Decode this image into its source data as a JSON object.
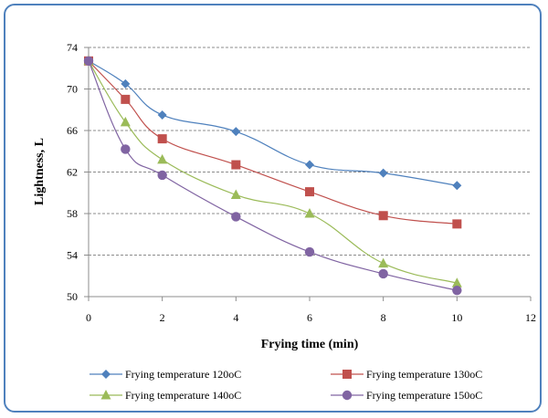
{
  "chart_data": {
    "type": "line",
    "xlabel": "Frying time (min)",
    "ylabel": "Lightness, L",
    "xlim": [
      0,
      12
    ],
    "ylim": [
      50,
      74
    ],
    "xticks": [
      0,
      2,
      4,
      6,
      8,
      10,
      12
    ],
    "yticks": [
      50,
      54,
      58,
      62,
      66,
      70,
      74
    ],
    "grid": "horizontal-dashed",
    "legend": "bottom",
    "x": [
      0,
      1,
      2,
      4,
      6,
      8,
      10
    ],
    "series": [
      {
        "name": "Frying temperature 120oC",
        "color": "#4f81bd",
        "marker": "diamond",
        "values": [
          72.7,
          70.5,
          67.5,
          65.9,
          62.7,
          61.9,
          60.7
        ]
      },
      {
        "name": "Frying temperature 130oC",
        "color": "#c0504d",
        "marker": "square",
        "values": [
          72.7,
          69.0,
          65.2,
          62.7,
          60.1,
          57.8,
          57.0
        ]
      },
      {
        "name": "Frying temperature 140oC",
        "color": "#9bbb59",
        "marker": "triangle",
        "values": [
          72.7,
          66.8,
          63.2,
          59.8,
          58.0,
          53.2,
          51.3
        ]
      },
      {
        "name": "Frying temperature 150oC",
        "color": "#8064a2",
        "marker": "circle",
        "values": [
          72.7,
          64.2,
          61.7,
          57.7,
          54.3,
          52.2,
          50.6
        ]
      }
    ]
  }
}
